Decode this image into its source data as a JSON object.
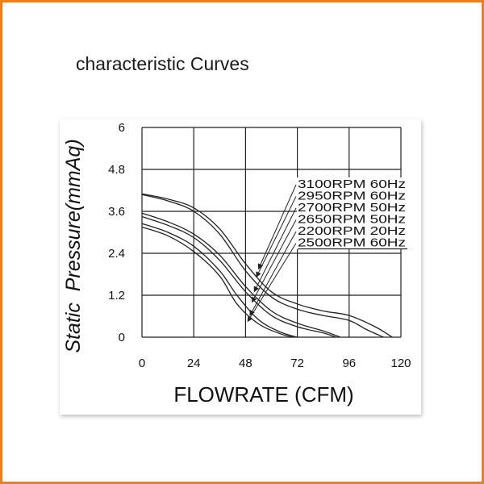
{
  "page": {
    "title": "characteristic Curves",
    "border_color": "#f07d1e"
  },
  "chart_data": {
    "type": "line",
    "title": "",
    "xlabel": "FLOWRATE (CFM)",
    "ylabel": "Static  Pressure(mmAq)",
    "xlim": [
      0,
      120
    ],
    "ylim": [
      0,
      6
    ],
    "x_ticks": [
      0,
      24,
      48,
      72,
      96,
      120
    ],
    "x_tick_labels": [
      "0",
      "24",
      "48",
      "72",
      "96",
      "120"
    ],
    "y_ticks": [
      0,
      1.2,
      2.4,
      3.6,
      4.8,
      6
    ],
    "y_tick_labels": [
      "0",
      "1.2",
      "2.4",
      "3.6",
      "4.8",
      "6"
    ],
    "grid": true,
    "legend_position": "top-right",
    "series": [
      {
        "name": "3100RPM  60Hz",
        "x": [
          0,
          12,
          24,
          36,
          48,
          60,
          72,
          84,
          96,
          108,
          116
        ],
        "y": [
          4.1,
          3.95,
          3.7,
          3.1,
          2.1,
          1.3,
          0.95,
          0.75,
          0.62,
          0.3,
          0.0
        ]
      },
      {
        "name": "2950RPM  60Hz",
        "x": [
          0,
          12,
          24,
          36,
          48,
          60,
          72,
          84,
          96,
          104,
          112
        ],
        "y": [
          4.08,
          3.9,
          3.6,
          2.95,
          1.9,
          1.15,
          0.8,
          0.62,
          0.48,
          0.22,
          0.0
        ]
      },
      {
        "name": "2700RPM  50Hz",
        "x": [
          0,
          12,
          24,
          36,
          48,
          60,
          72,
          84,
          92
        ],
        "y": [
          3.55,
          3.3,
          2.95,
          2.35,
          1.45,
          0.75,
          0.4,
          0.18,
          0.0
        ]
      },
      {
        "name": "2650RPM  50Hz",
        "x": [
          0,
          12,
          24,
          36,
          48,
          60,
          72,
          84,
          90
        ],
        "y": [
          3.45,
          3.2,
          2.85,
          2.2,
          1.3,
          0.62,
          0.3,
          0.12,
          0.0
        ]
      },
      {
        "name": "2200RPM  20Hz",
        "x": [
          0,
          12,
          24,
          36,
          44,
          54,
          64,
          72
        ],
        "y": [
          3.25,
          3.0,
          2.6,
          1.9,
          1.2,
          0.5,
          0.15,
          0.0
        ]
      },
      {
        "name": "2500RPM  60Hz",
        "x": [
          0,
          12,
          24,
          36,
          44,
          54,
          64,
          70
        ],
        "y": [
          3.15,
          2.9,
          2.45,
          1.75,
          0.95,
          0.38,
          0.1,
          0.0
        ]
      }
    ],
    "callout_arrows": [
      {
        "from_label": 0,
        "to": [
          54,
          1.95
        ]
      },
      {
        "from_label": 1,
        "to": [
          53,
          1.72
        ]
      },
      {
        "from_label": 2,
        "to": [
          52,
          1.3
        ]
      },
      {
        "from_label": 3,
        "to": [
          51,
          1.0
        ]
      },
      {
        "from_label": 4,
        "to": [
          50,
          0.62
        ]
      },
      {
        "from_label": 5,
        "to": [
          49,
          0.45
        ]
      }
    ]
  }
}
